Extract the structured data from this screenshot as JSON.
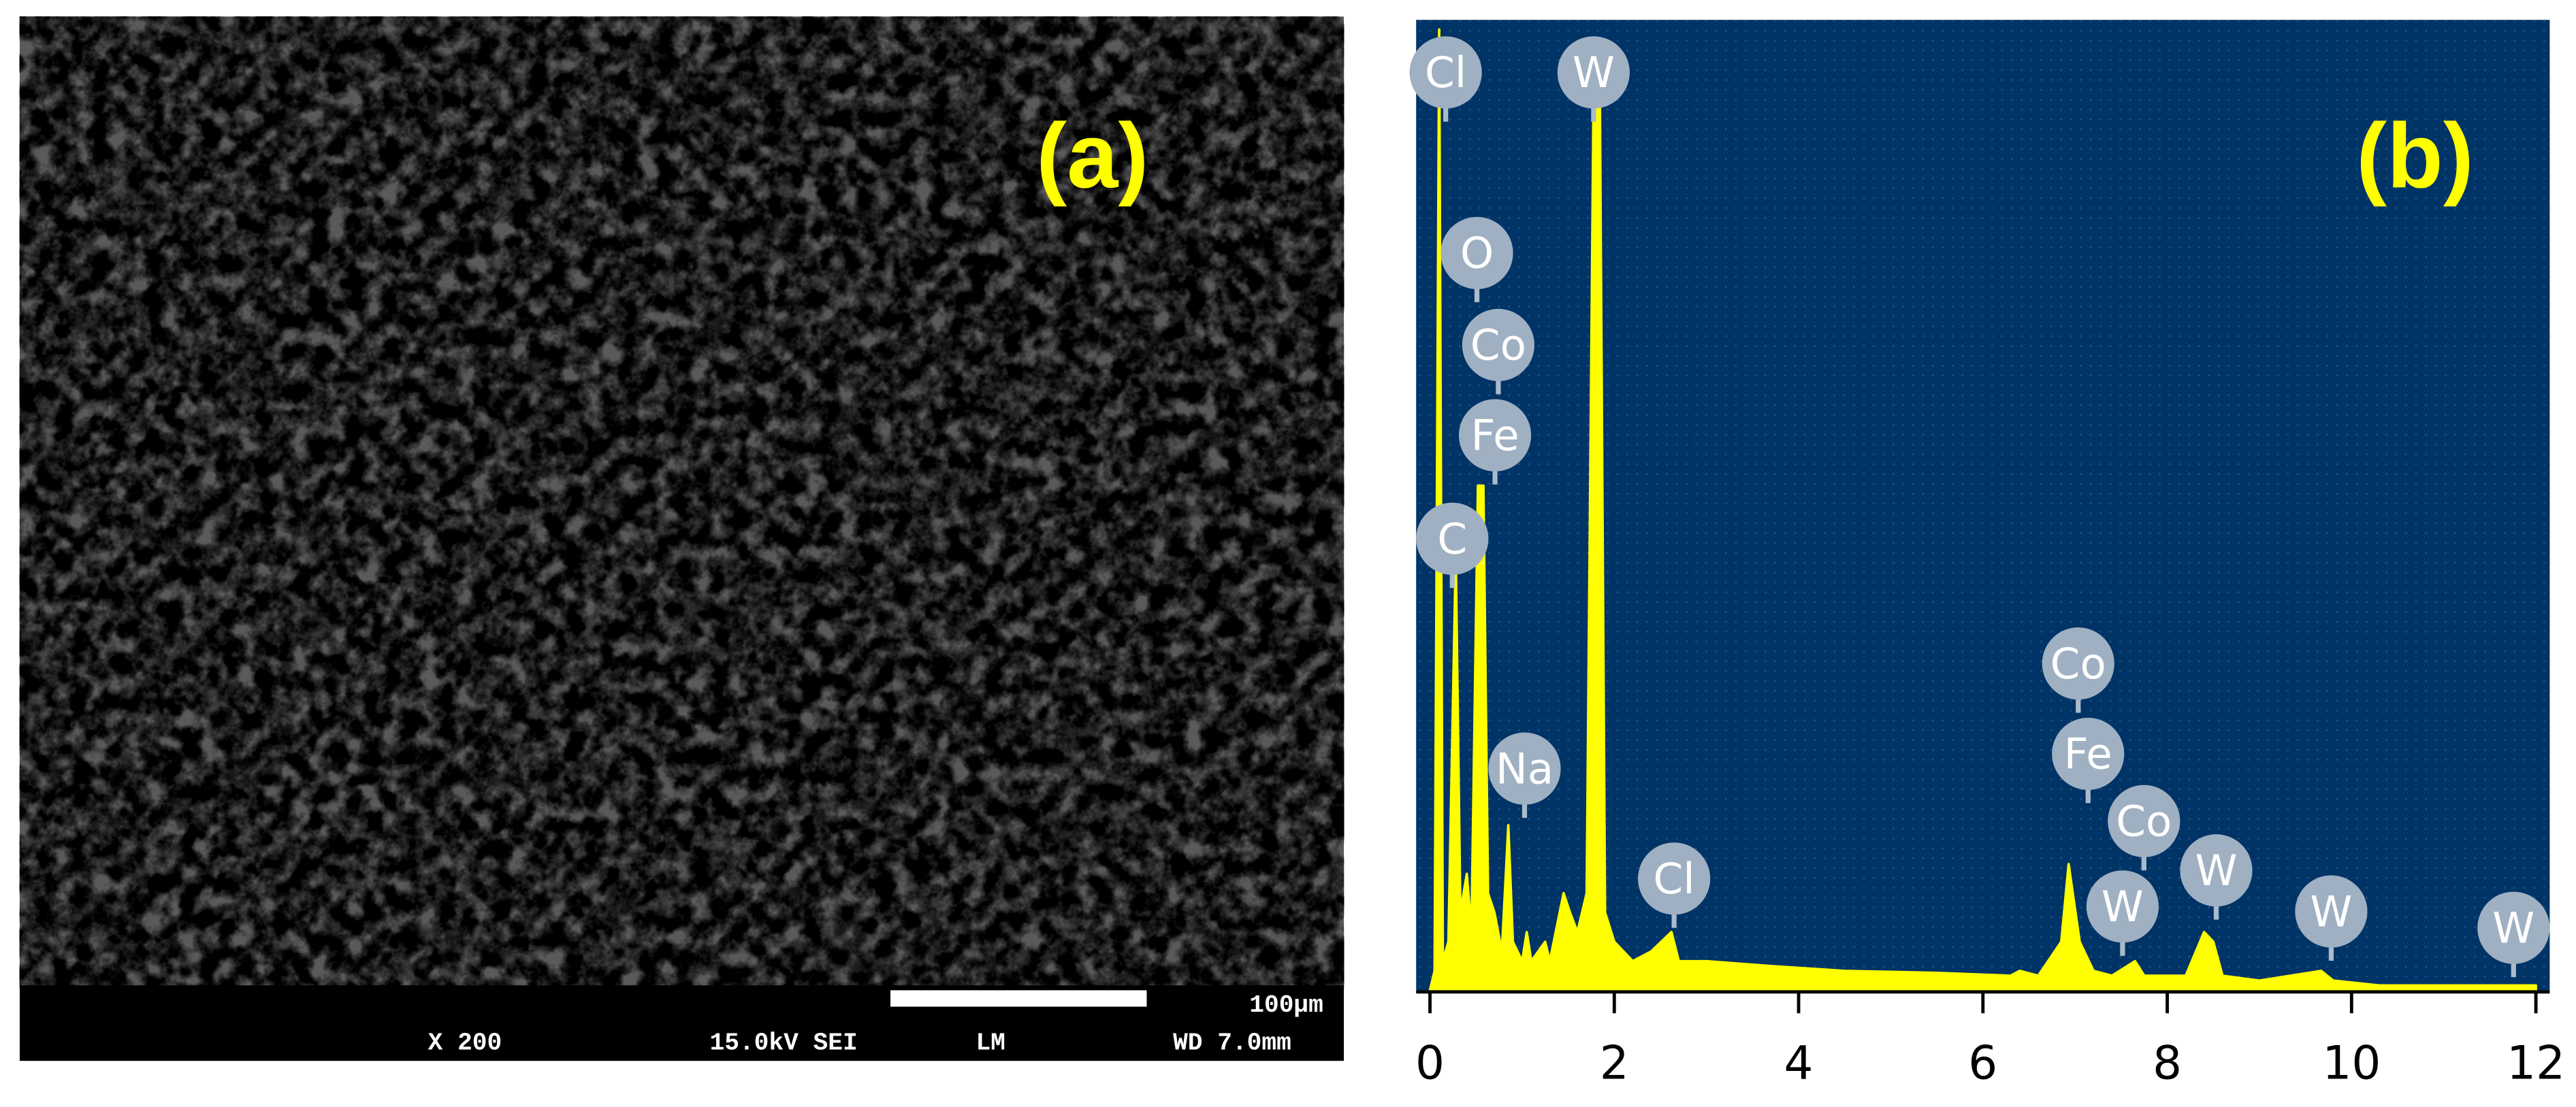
{
  "sem": {
    "label": "(a)",
    "scale_bar": "100µm",
    "magnification": "X 200",
    "voltage": "15.0kV SEI",
    "mode": "LM",
    "working_distance": "WD 7.0mm"
  },
  "chart_data": {
    "type": "area",
    "label": "(b)",
    "color": "#ffff00",
    "background": "#003366",
    "x": [
      0,
      0.05,
      0.1,
      0.14,
      0.2,
      0.28,
      0.33,
      0.4,
      0.45,
      0.52,
      0.58,
      0.63,
      0.7,
      0.78,
      0.85,
      0.9,
      1.0,
      1.05,
      1.1,
      1.25,
      1.3,
      1.45,
      1.52,
      1.6,
      1.7,
      1.78,
      1.84,
      1.9,
      2.0,
      2.2,
      2.4,
      2.62,
      2.7,
      3.0,
      3.7,
      4.5,
      5.5,
      6.3,
      6.4,
      6.6,
      6.85,
      6.93,
      7.05,
      7.2,
      7.4,
      7.65,
      7.75,
      8.2,
      8.4,
      8.5,
      8.6,
      9.0,
      9.67,
      9.8,
      10.3,
      12
    ],
    "values": [
      0,
      2,
      99,
      3,
      5,
      45,
      8,
      12,
      6,
      52,
      52,
      10,
      8,
      4,
      17,
      5,
      3,
      6,
      3,
      5,
      3,
      10,
      8,
      6,
      10,
      98,
      98,
      8,
      5,
      3,
      4,
      6,
      3,
      3,
      2.5,
      2,
      1.8,
      1.5,
      2,
      1.5,
      5,
      13,
      5,
      2,
      1.5,
      3,
      1.5,
      1.5,
      6,
      5,
      1.5,
      1,
      2,
      1,
      0.5,
      0.5
    ],
    "xlim": [
      -0.15,
      12.15
    ],
    "ylim": [
      0,
      100
    ],
    "xticks": [
      0,
      2,
      4,
      6,
      8,
      10,
      12
    ],
    "annotations": [
      "Cl",
      "W",
      "O",
      "Co",
      "Fe",
      "C",
      "Na",
      "Cl",
      "Co",
      "Fe",
      "Co",
      "W",
      "W",
      "W",
      "W"
    ]
  }
}
